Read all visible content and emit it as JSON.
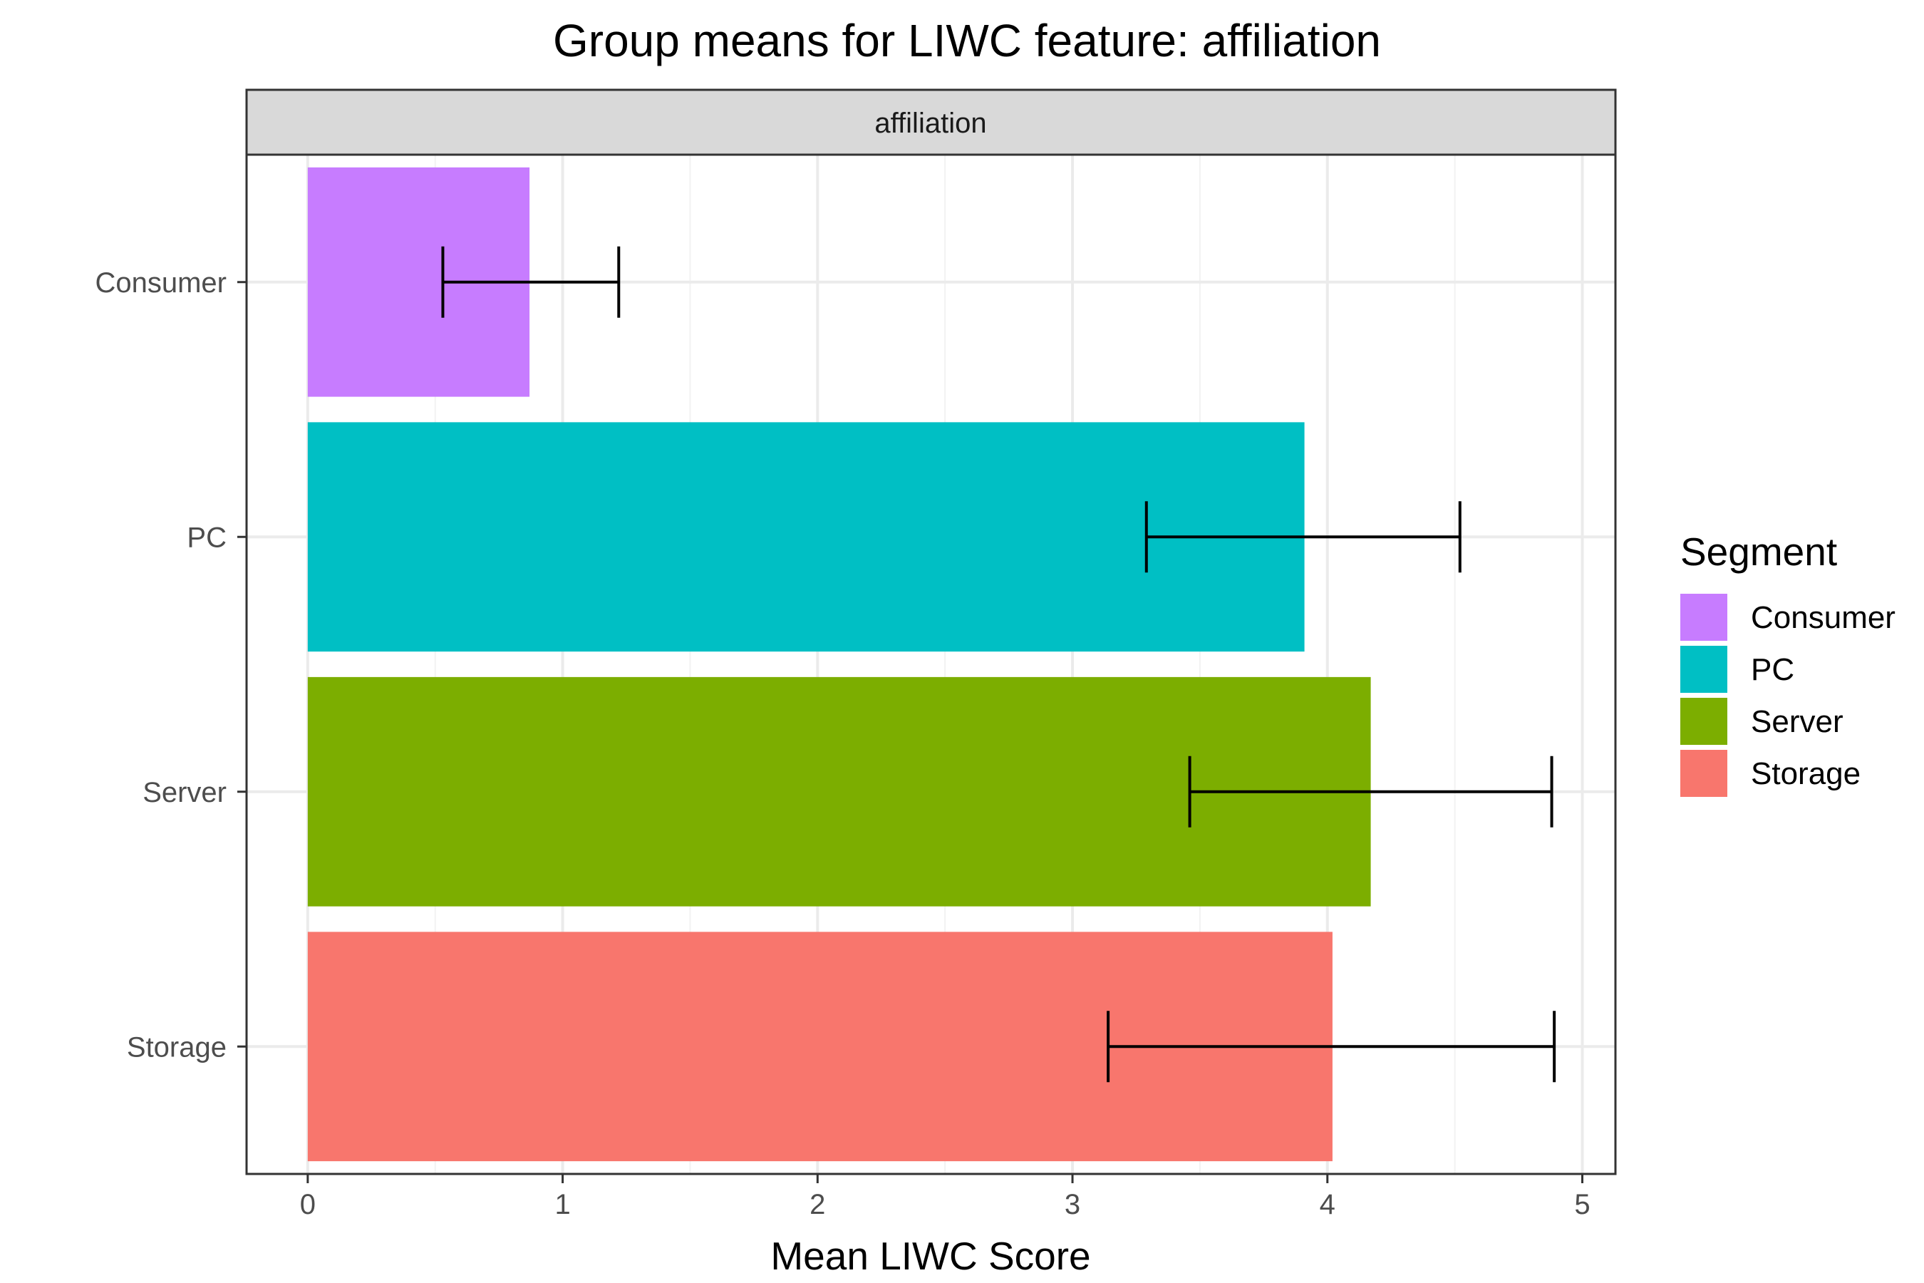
{
  "chart_data": {
    "type": "bar",
    "orientation": "horizontal",
    "title": "Group means for LIWC feature: affiliation",
    "facet_label": "affiliation",
    "xlabel": "Mean LIWC Score",
    "ylabel": "",
    "xlim": [
      -0.24,
      5.13
    ],
    "x_ticks": [
      "0",
      "1",
      "2",
      "3",
      "4",
      "5"
    ],
    "categories": [
      "Consumer",
      "PC",
      "Server",
      "Storage"
    ],
    "values": [
      0.87,
      3.91,
      4.17,
      4.02
    ],
    "error_low": [
      0.53,
      3.29,
      3.46,
      3.14
    ],
    "error_high": [
      1.22,
      4.52,
      4.88,
      4.89
    ],
    "colors": [
      "#C77CFF",
      "#00BFC4",
      "#7CAE00",
      "#F8766D"
    ],
    "grid": true,
    "legend": {
      "title": "Segment",
      "position": "right",
      "entries": [
        "Consumer",
        "PC",
        "Server",
        "Storage"
      ]
    }
  }
}
